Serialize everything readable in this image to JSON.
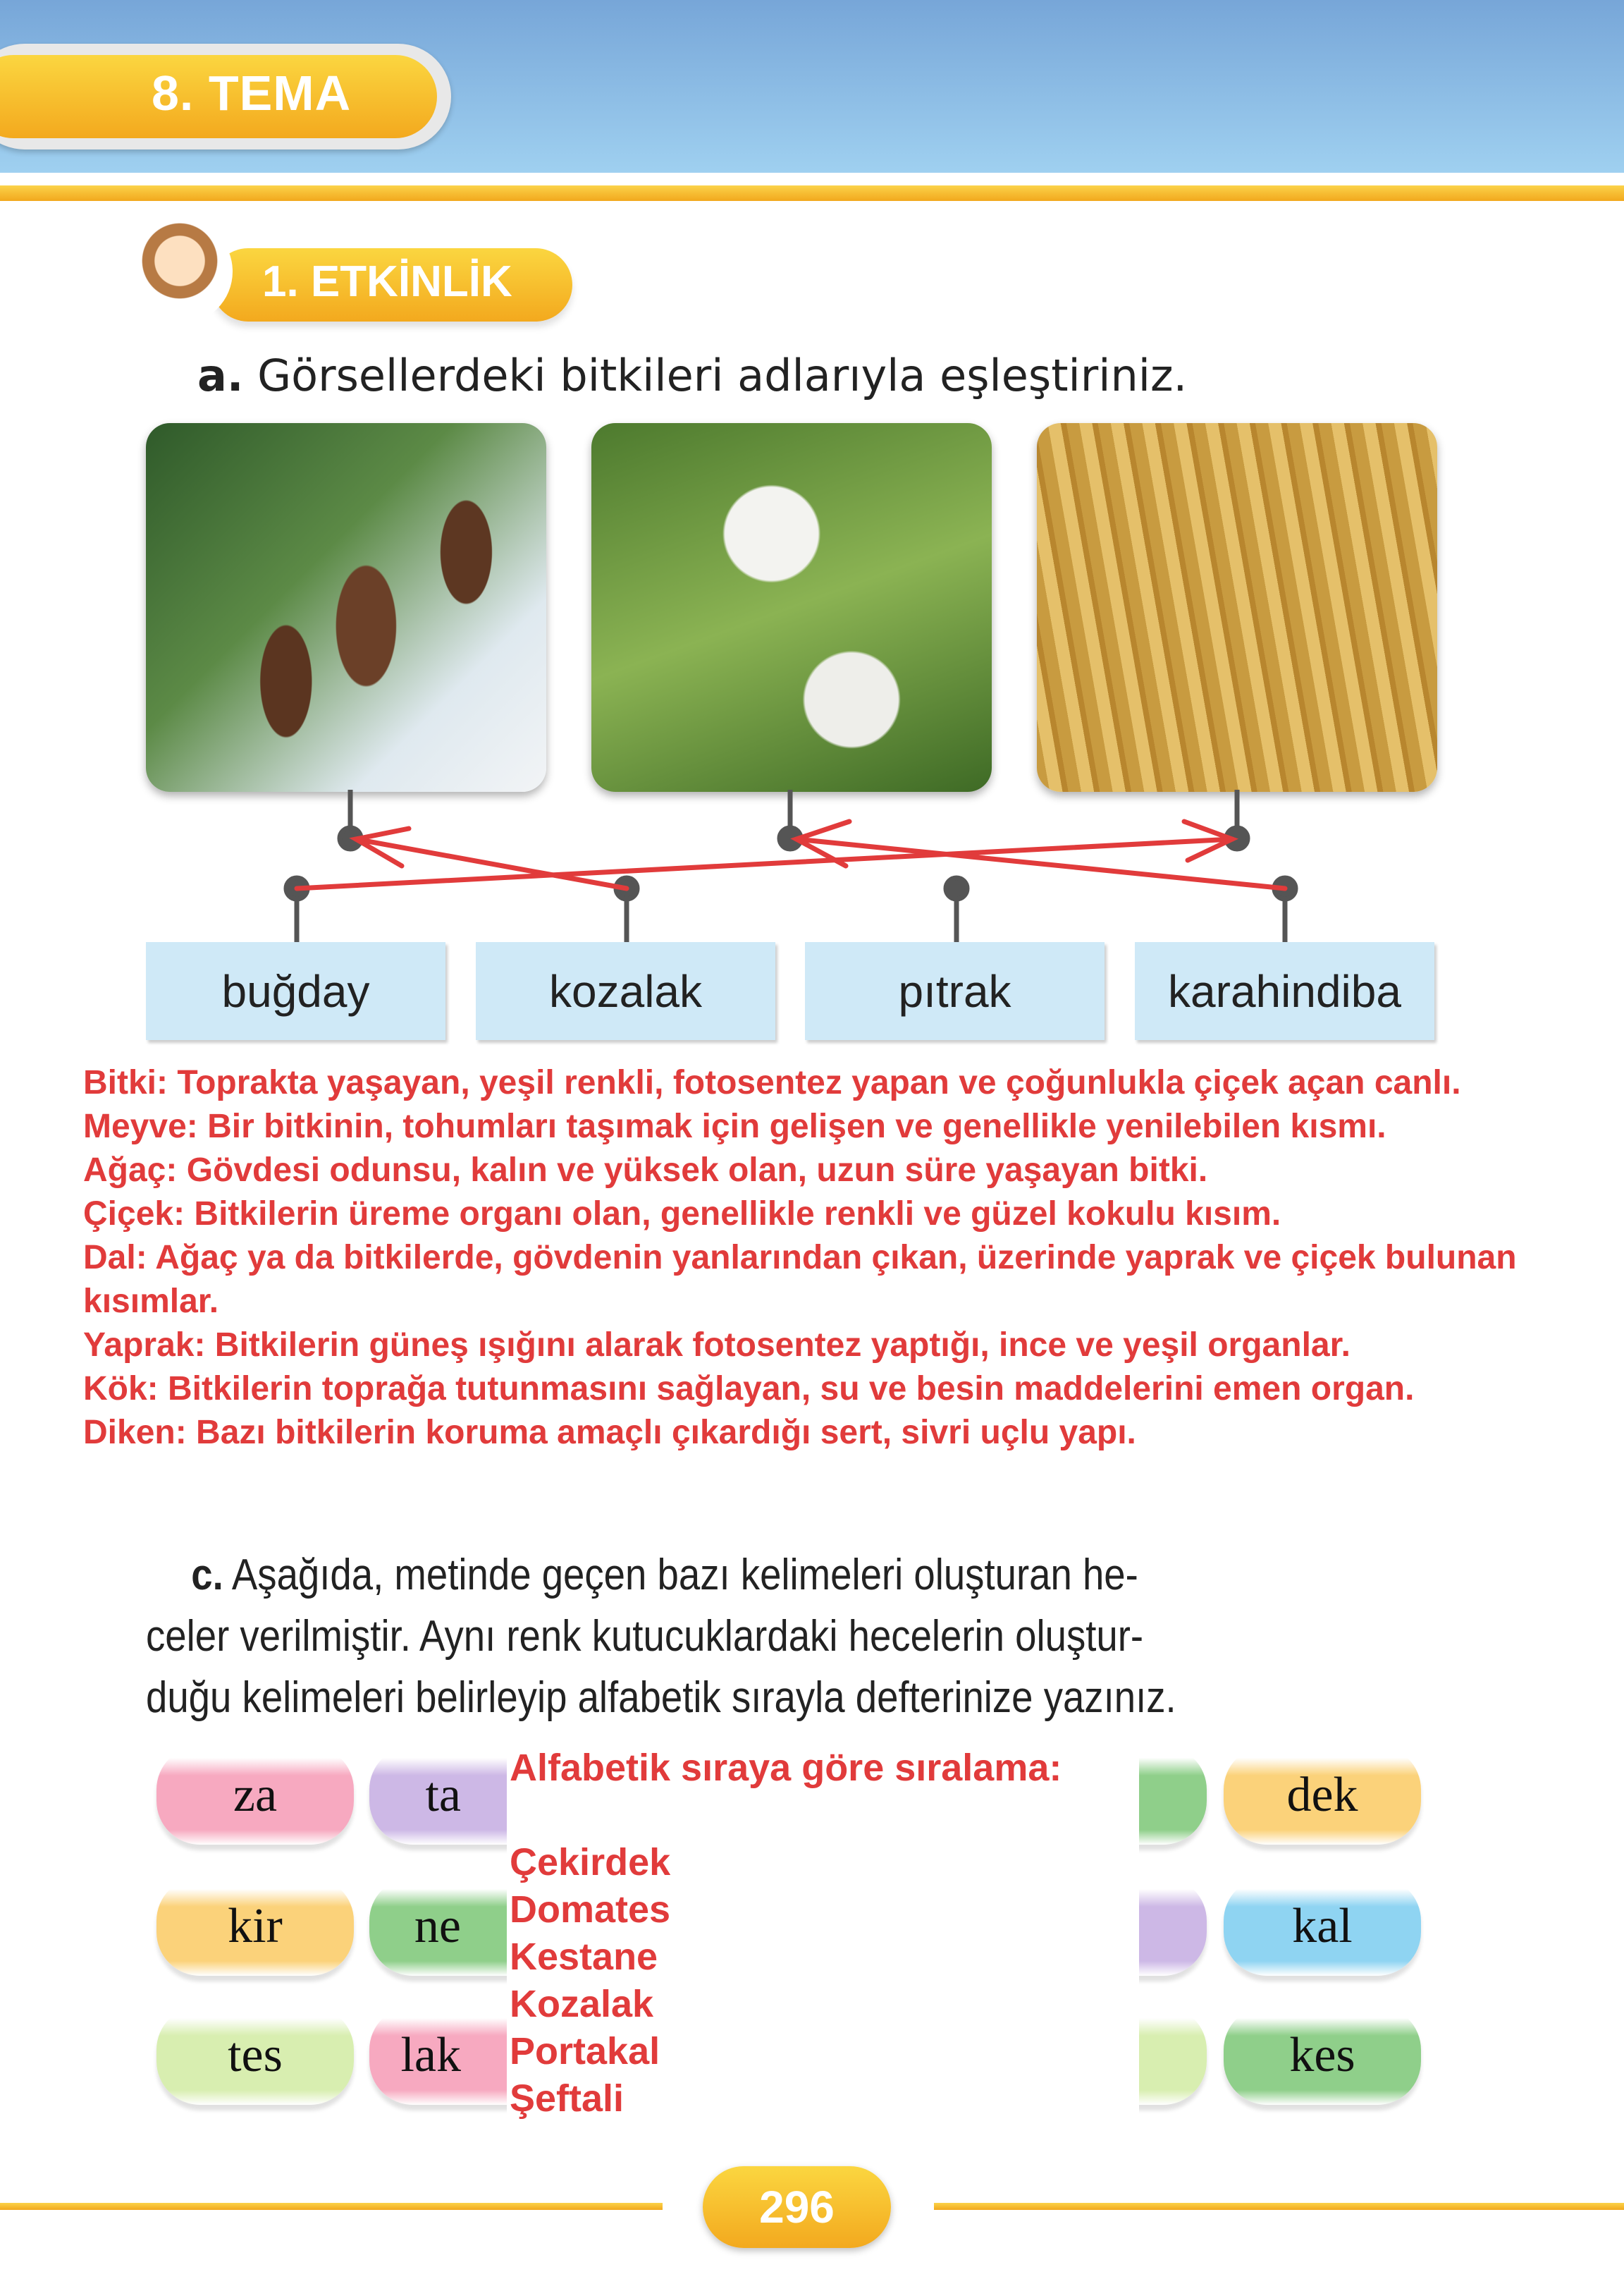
{
  "header": {
    "theme_label": "8. TEMA"
  },
  "activity": {
    "label": "1. ETKİNLİK"
  },
  "part_a": {
    "letter": "a.",
    "instruction": "Görsellerdeki bitkileri adlarıyla eşleştiriniz.",
    "labels": [
      "buğday",
      "kozalak",
      "pıtrak",
      "karahindiba"
    ]
  },
  "definitions": [
    "Bitki: Toprakta yaşayan, yeşil renkli, fotosentez yapan ve çoğunlukla çiçek açan canlı.",
    "Meyve: Bir bitkinin, tohumları taşımak için gelişen ve genellikle yenilebilen kısmı.",
    "Ağaç: Gövdesi odunsu, kalın ve yüksek olan, uzun süre yaşayan bitki.",
    "Çiçek: Bitkilerin üreme organı olan, genellikle renkli ve güzel kokulu kısım.",
    "Dal: Ağaç ya da bitkilerde, gövdenin yanlarından çıkan, üzerinde yaprak ve çiçek bulunan kısımlar.",
    "Yaprak: Bitkilerin güneş ışığını alarak fotosentez yaptığı, ince ve yeşil organlar.",
    "Kök: Bitkilerin toprağa tutunmasını sağlayan, su ve besin maddelerini emen organ.",
    "Diken: Bazı bitkilerin koruma amaçlı çıkardığı sert, sivri uçlu yapı."
  ],
  "part_c": {
    "letter": "c.",
    "lines": [
      "Aşağıda, metinde geçen bazı kelimeleri oluşturan he-",
      "celer verilmiştir. Aynı renk kutucuklardaki hecelerin oluştur-",
      "duğu kelimeleri belirleyip alfabetik sırayla defterinize yazınız."
    ],
    "syllables": [
      [
        {
          "text": "za",
          "color": "#f7a9c0"
        },
        {
          "text": "ta",
          "color": "#cdb8e6"
        },
        {
          "text": "",
          "color": "#9fb3e6"
        },
        {
          "text": "",
          "color": "#9fd69a"
        },
        {
          "text": "",
          "color": "#8fcf8a"
        },
        {
          "text": "dek",
          "color": "#fbd27a"
        }
      ],
      [
        {
          "text": "kir",
          "color": "#fbd27a"
        },
        {
          "text": "ne",
          "color": "#8fcf8a"
        },
        {
          "text": "",
          "color": "#fff"
        },
        {
          "text": "",
          "color": "#fff"
        },
        {
          "text": "",
          "color": "#cdb8e6"
        },
        {
          "text": "kal",
          "color": "#8fd4f2"
        }
      ],
      [
        {
          "text": "tes",
          "color": "#d8eeb0"
        },
        {
          "text": "lak",
          "color": "#f7a9c0"
        },
        {
          "text": "",
          "color": "#fff"
        },
        {
          "text": "",
          "color": "#fff"
        },
        {
          "text": "",
          "color": "#d8eeb0"
        },
        {
          "text": "kes",
          "color": "#8fcf8a"
        }
      ]
    ]
  },
  "answer_overlay": {
    "title": "Alfabetik sıraya göre sıralama:",
    "items": [
      "Çekirdek",
      "Domates",
      "Kestane",
      "Kozalak",
      "Portakal",
      "Şeftali"
    ]
  },
  "footer": {
    "page_number": "296"
  },
  "colors": {
    "accent_orange": "#f3a91e",
    "header_blue": "#77a6d8",
    "answer_red": "#e13b3b",
    "label_blue": "#cfe9f7"
  }
}
